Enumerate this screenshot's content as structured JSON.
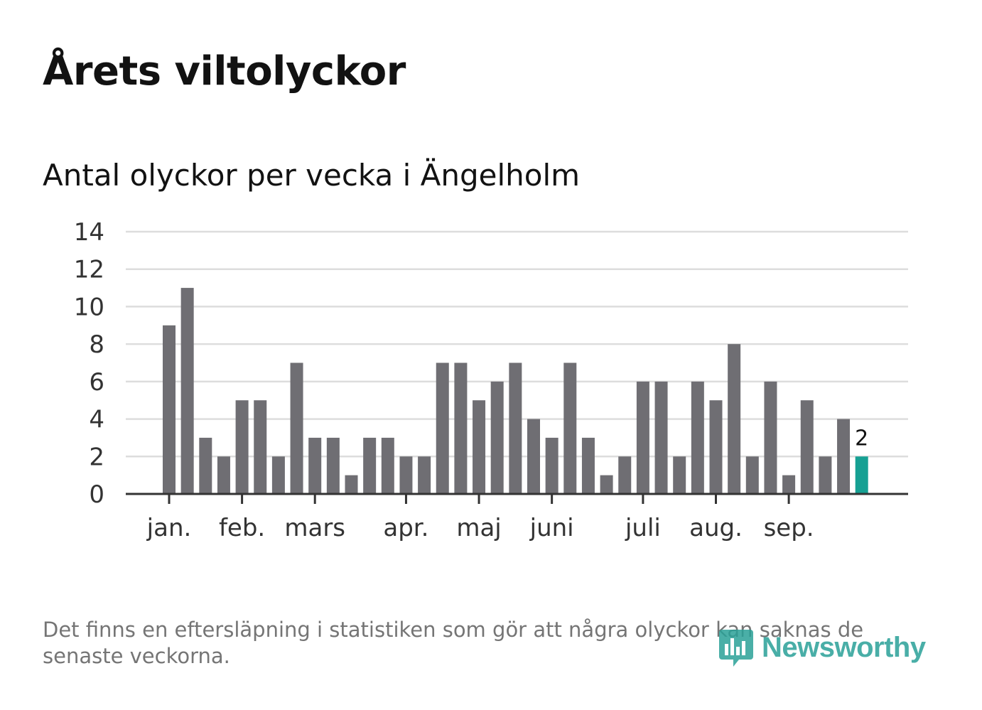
{
  "header": {
    "title": "Årets viltolyckor",
    "subtitle": "Antal olyckor per vecka i Ängelholm"
  },
  "footer": {
    "note": "Det finns en eftersläpning i statistiken som gör att några olyckor kan saknas de senaste veckorna.",
    "logo_text": "Newsworthy"
  },
  "colors": {
    "bar": "#6f6e73",
    "highlight": "#16a093",
    "grid": "#dddddd",
    "axis": "#333333",
    "logo": "#2aa198"
  },
  "chart_data": {
    "type": "bar",
    "title": "Antal olyckor per vecka i Ängelholm",
    "xlabel": "",
    "ylabel": "",
    "ylim": [
      0,
      14
    ],
    "yticks": [
      "0",
      "2",
      "4",
      "6",
      "8",
      "10",
      "12",
      "14"
    ],
    "grid": true,
    "values": [
      9,
      11,
      3,
      2,
      5,
      5,
      2,
      7,
      3,
      3,
      1,
      3,
      3,
      2,
      2,
      7,
      7,
      5,
      6,
      7,
      4,
      3,
      7,
      3,
      1,
      2,
      6,
      6,
      2,
      6,
      5,
      8,
      2,
      6,
      1,
      5,
      2,
      4,
      2
    ],
    "highlight_index": 38,
    "highlight_label": "2",
    "month_labels": [
      {
        "label": "jan.",
        "week_index": 0
      },
      {
        "label": "feb.",
        "week_index": 4
      },
      {
        "label": "mars",
        "week_index": 8
      },
      {
        "label": "apr.",
        "week_index": 13
      },
      {
        "label": "maj",
        "week_index": 17
      },
      {
        "label": "juni",
        "week_index": 21
      },
      {
        "label": "juli",
        "week_index": 26
      },
      {
        "label": "aug.",
        "week_index": 30
      },
      {
        "label": "sep.",
        "week_index": 34
      }
    ]
  }
}
